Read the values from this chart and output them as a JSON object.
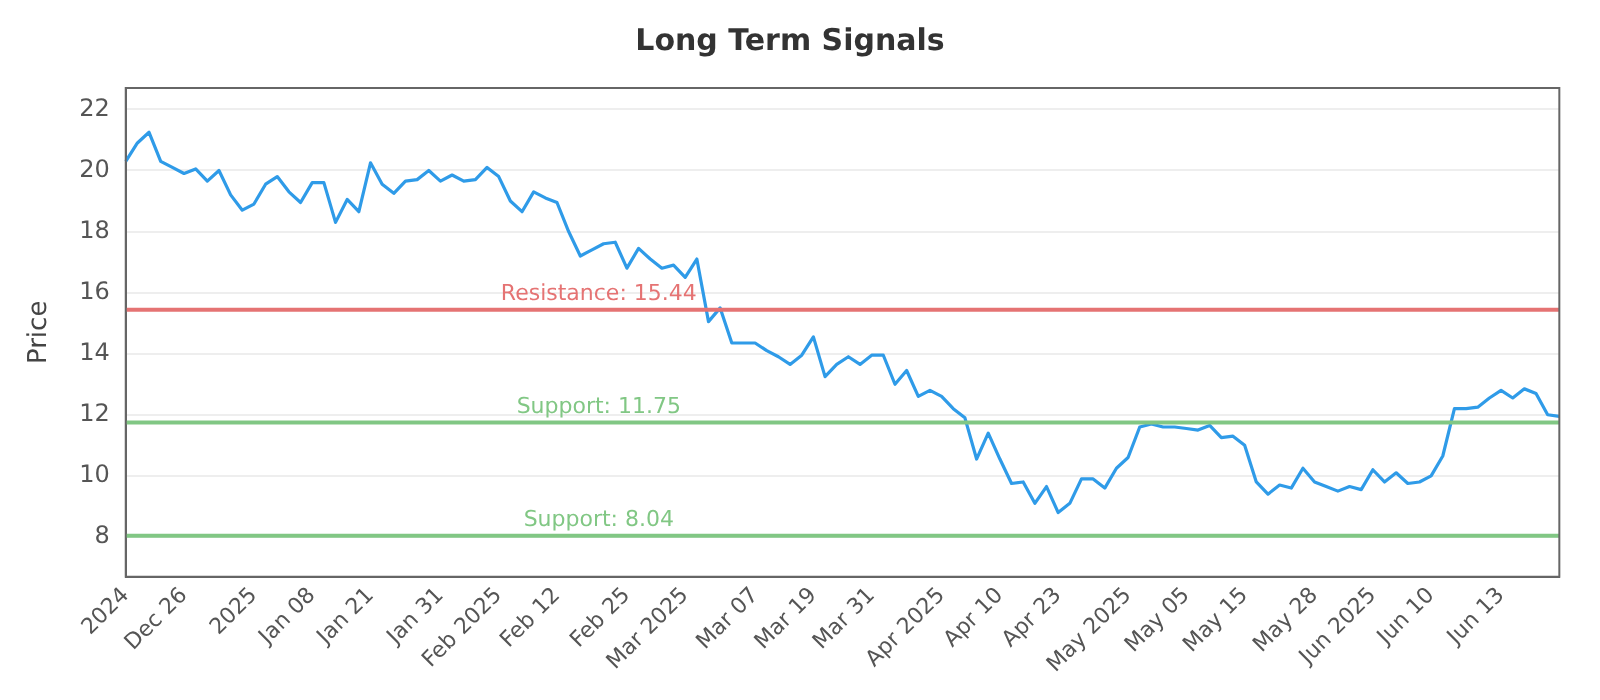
{
  "chart_data": {
    "type": "line",
    "title": "Long Term Signals",
    "ylabel": "Price",
    "categories": [
      "2024",
      null,
      null,
      null,
      null,
      "Dec 26",
      null,
      null,
      null,
      null,
      null,
      "2025",
      null,
      null,
      null,
      null,
      "Jan 08",
      null,
      null,
      null,
      null,
      "Jan 21",
      null,
      null,
      null,
      null,
      null,
      "Jan 31",
      null,
      null,
      null,
      null,
      "Feb 2025",
      null,
      null,
      null,
      null,
      "Feb 12",
      null,
      null,
      null,
      null,
      null,
      "Feb 25",
      null,
      null,
      null,
      null,
      "Mar 2025",
      null,
      null,
      null,
      null,
      null,
      "Mar 07",
      null,
      null,
      null,
      null,
      "Mar 19",
      null,
      null,
      null,
      null,
      "Mar 31",
      null,
      null,
      null,
      null,
      null,
      "Apr 2025",
      null,
      null,
      null,
      null,
      "Apr 10",
      null,
      null,
      null,
      null,
      "Apr 23",
      null,
      null,
      null,
      null,
      null,
      "May 2025",
      null,
      null,
      null,
      null,
      "May 05",
      null,
      null,
      null,
      null,
      "May 15",
      null,
      null,
      null,
      null,
      null,
      "May 28",
      null,
      null,
      null,
      null,
      "Jun 2025",
      null,
      null,
      null,
      null,
      "Jun 10",
      null,
      null,
      null,
      null,
      null,
      "Jun 13",
      null,
      null,
      null,
      null,
      null
    ],
    "series": [
      {
        "color": "#2f9be8",
        "values": [
          20.3,
          20.9,
          21.25,
          20.3,
          20.1,
          19.9,
          20.05,
          19.65,
          20.0,
          19.2,
          18.7,
          18.9,
          19.55,
          19.8,
          19.3,
          18.95,
          19.6,
          19.6,
          18.3,
          19.05,
          18.65,
          20.25,
          19.55,
          19.25,
          19.65,
          19.7,
          20.0,
          19.65,
          19.85,
          19.65,
          19.7,
          20.1,
          19.8,
          19.0,
          18.65,
          19.3,
          19.1,
          18.95,
          18.0,
          17.2,
          17.4,
          17.6,
          17.65,
          16.8,
          17.45,
          17.1,
          16.8,
          16.9,
          16.5,
          17.1,
          15.05,
          15.5,
          14.35,
          14.35,
          14.35,
          14.1,
          13.9,
          13.65,
          13.95,
          14.55,
          13.25,
          13.65,
          13.9,
          13.65,
          13.95,
          13.95,
          13.0,
          13.45,
          12.6,
          12.8,
          12.6,
          12.2,
          11.9,
          10.55,
          11.4,
          10.55,
          9.75,
          9.8,
          9.1,
          9.65,
          8.8,
          9.1,
          9.9,
          9.9,
          9.6,
          10.25,
          10.6,
          11.6,
          11.7,
          11.6,
          11.6,
          11.55,
          11.5,
          11.65,
          11.25,
          11.3,
          11.0,
          9.8,
          9.4,
          9.7,
          9.6,
          10.25,
          9.8,
          9.65,
          9.5,
          9.65,
          9.55,
          10.2,
          9.8,
          10.1,
          9.75,
          9.8,
          10.0,
          10.65,
          12.2,
          12.2,
          12.25,
          12.55,
          12.8,
          12.55,
          12.85,
          12.7,
          12.0,
          11.95
        ]
      }
    ],
    "ylim": [
      6.7,
      22.7
    ],
    "yticks": [
      8,
      10,
      12,
      14,
      16,
      18,
      20,
      22
    ],
    "grid": "y",
    "legend": false,
    "marker": "none",
    "line_style": "solid",
    "ref_lines": [
      {
        "axis": "y",
        "value": 15.44,
        "label": "Resistance: 15.44",
        "color": "#e57373"
      },
      {
        "axis": "y",
        "value": 11.75,
        "label": "Support: 11.75",
        "color": "#81c784"
      },
      {
        "axis": "y",
        "value": 8.04,
        "label": "Support: 8.04",
        "color": "#81c784"
      }
    ]
  }
}
